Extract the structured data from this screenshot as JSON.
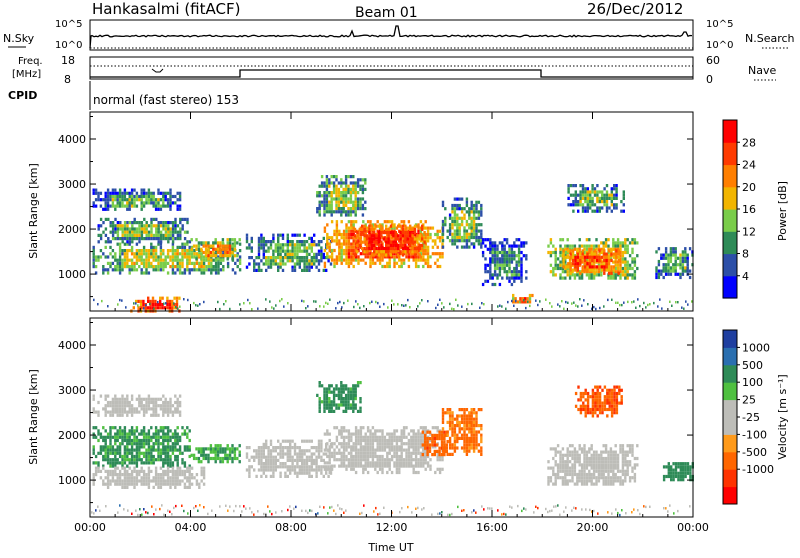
{
  "header": {
    "station": "Hankasalmi (fitACF)",
    "beam": "Beam 01",
    "date": "26/Dec/2012"
  },
  "sky_panel": {
    "left_label": "N.Sky",
    "right_label": "N.Search",
    "left_ticks": [
      "10^5",
      "10^0"
    ],
    "right_ticks": [
      "10^5",
      "10^0"
    ]
  },
  "freq_panel": {
    "left_label_1": "Freq.",
    "left_label_2": "[MHz]",
    "right_label": "Nave",
    "left_ticks": [
      "18",
      "8"
    ],
    "right_ticks": [
      "60",
      "0"
    ]
  },
  "cpid_panel": {
    "label": "CPID",
    "mode_text": "normal (fast stereo) 153"
  },
  "colors": {
    "power_scale": [
      "#0000ff",
      "#2c4fa8",
      "#2e8b57",
      "#7acd4a",
      "#f2b500",
      "#ff7f00",
      "#ff3b00",
      "#ff0000"
    ],
    "velocity_scale": [
      "#1f3fa0",
      "#2a6fb0",
      "#2e8b57",
      "#4fc040",
      "#bdbdb8",
      "#bdbdb8",
      "#ff9a1a",
      "#ff6600",
      "#ff3300",
      "#ff0000"
    ],
    "ground_scatter": "#bdbdb8"
  },
  "chart_data": [
    {
      "type": "heatmap",
      "name_ref": "power",
      "ylabel": "Slant Range [km]",
      "xlabel": "Time UT",
      "x_ticks": [
        "00:00",
        "04:00",
        "08:00",
        "12:00",
        "16:00",
        "20:00",
        "00:00"
      ],
      "x_tick_hours": [
        0,
        4,
        8,
        12,
        16,
        20,
        24
      ],
      "xlim": [
        0,
        24
      ],
      "y_ticks": [
        1000,
        2000,
        3000,
        4000
      ],
      "ylim": [
        180,
        4600
      ],
      "colorbar": {
        "label": "Power [dB]",
        "tick_labels": [
          "4",
          "8",
          "12",
          "16",
          "20",
          "24",
          "28"
        ],
        "range": [
          0,
          32
        ]
      },
      "regions": [
        {
          "t": [
            0.1,
            3.6
          ],
          "r": [
            2450,
            2900
          ],
          "v": 9
        },
        {
          "t": [
            0.1,
            6.0
          ],
          "r": [
            1050,
            1700
          ],
          "v": 13
        },
        {
          "t": [
            0.3,
            4.0
          ],
          "r": [
            1750,
            2250
          ],
          "v": 11
        },
        {
          "t": [
            4.0,
            6.0
          ],
          "r": [
            1350,
            1800
          ],
          "v": 18
        },
        {
          "t": [
            1.6,
            3.6
          ],
          "r": [
            200,
            500
          ],
          "v": 26
        },
        {
          "t": [
            6.2,
            9.6
          ],
          "r": [
            1100,
            1900
          ],
          "v": 10
        },
        {
          "t": [
            9.0,
            11.0
          ],
          "r": [
            2300,
            3200
          ],
          "v": 12
        },
        {
          "t": [
            9.3,
            14.0
          ],
          "r": [
            1200,
            2200
          ],
          "v": 22
        },
        {
          "t": [
            10.5,
            13.3
          ],
          "r": [
            1400,
            2100
          ],
          "v": 26
        },
        {
          "t": [
            14.0,
            15.6
          ],
          "r": [
            1600,
            2700
          ],
          "v": 11
        },
        {
          "t": [
            15.6,
            17.4
          ],
          "r": [
            800,
            1800
          ],
          "v": 7
        },
        {
          "t": [
            16.7,
            17.6
          ],
          "r": [
            380,
            560
          ],
          "v": 22
        },
        {
          "t": [
            18.2,
            21.8
          ],
          "r": [
            900,
            1800
          ],
          "v": 16
        },
        {
          "t": [
            18.8,
            21.0
          ],
          "r": [
            1050,
            1550
          ],
          "v": 24
        },
        {
          "t": [
            19.0,
            21.2
          ],
          "r": [
            2400,
            3000
          ],
          "v": 10
        },
        {
          "t": [
            22.5,
            24.0
          ],
          "r": [
            900,
            1600
          ],
          "v": 9
        }
      ]
    },
    {
      "type": "heatmap",
      "name_ref": "velocity",
      "ylabel": "Slant Range [km]",
      "xlabel": "Time UT",
      "x_ticks": [
        "00:00",
        "04:00",
        "08:00",
        "12:00",
        "16:00",
        "20:00",
        "00:00"
      ],
      "x_tick_hours": [
        0,
        4,
        8,
        12,
        16,
        20,
        24
      ],
      "xlim": [
        0,
        24
      ],
      "y_ticks": [
        1000,
        2000,
        3000,
        4000
      ],
      "ylim": [
        180,
        4600
      ],
      "colorbar": {
        "label": "Velocity [m s⁻¹]",
        "tick_labels": [
          "1000",
          "500",
          "100",
          "25",
          "-25",
          "-100",
          "-500",
          "-1000"
        ],
        "range": [
          -1200,
          1200
        ]
      },
      "regions": [
        {
          "t": [
            0.1,
            3.6
          ],
          "r": [
            2450,
            2900
          ],
          "v": 25,
          "g": true
        },
        {
          "t": [
            0.1,
            4.0
          ],
          "r": [
            1300,
            2200
          ],
          "v": 150
        },
        {
          "t": [
            4.0,
            6.0
          ],
          "r": [
            1400,
            1800
          ],
          "v": 90
        },
        {
          "t": [
            0.1,
            4.5
          ],
          "r": [
            850,
            1300
          ],
          "v": -40,
          "g": true
        },
        {
          "t": [
            6.2,
            9.6
          ],
          "r": [
            1100,
            1900
          ],
          "v": 10,
          "g": true
        },
        {
          "t": [
            9.3,
            14.0
          ],
          "r": [
            1200,
            2200
          ],
          "v": 0,
          "g": true
        },
        {
          "t": [
            9.0,
            10.8
          ],
          "r": [
            2500,
            3200
          ],
          "v": 200
        },
        {
          "t": [
            13.2,
            14.2
          ],
          "r": [
            1600,
            2100
          ],
          "v": -350
        },
        {
          "t": [
            14.0,
            15.6
          ],
          "r": [
            1600,
            2600
          ],
          "v": -150
        },
        {
          "t": [
            18.2,
            21.8
          ],
          "r": [
            900,
            1800
          ],
          "v": 0,
          "g": true
        },
        {
          "t": [
            19.3,
            21.2
          ],
          "r": [
            2400,
            3100
          ],
          "v": -400
        },
        {
          "t": [
            22.8,
            24.0
          ],
          "r": [
            1000,
            1400
          ],
          "v": 300
        }
      ]
    }
  ]
}
